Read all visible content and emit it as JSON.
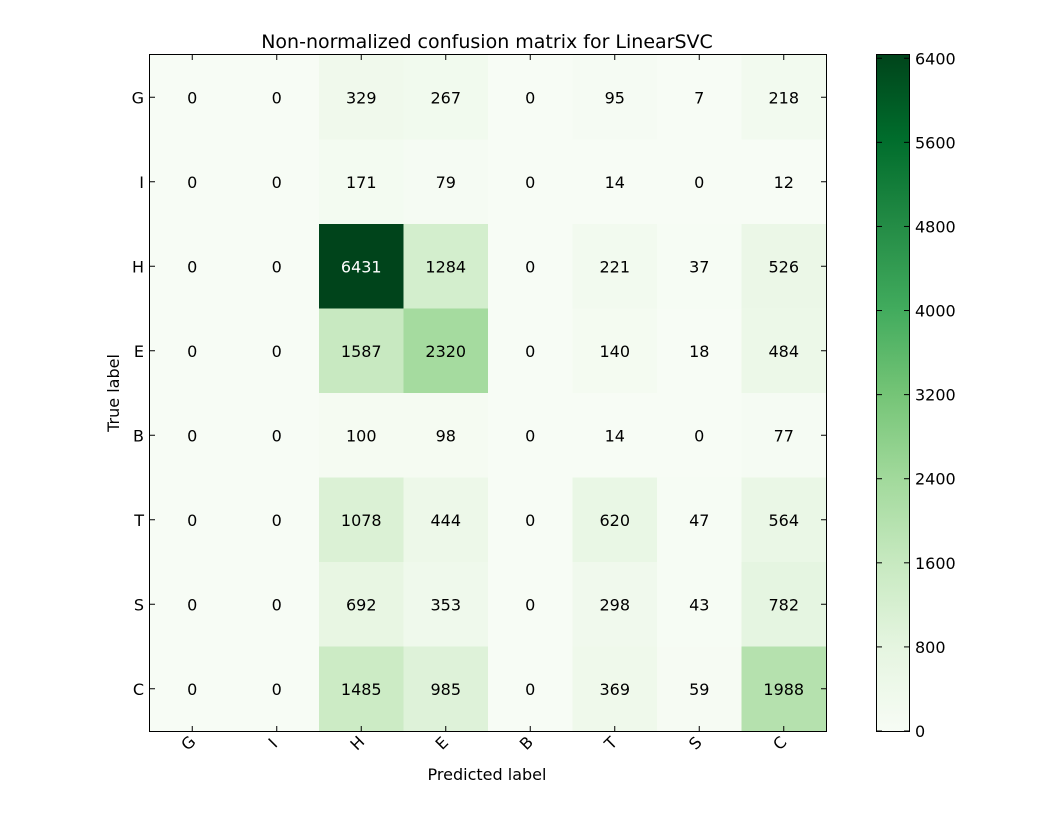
{
  "chart_data": {
    "type": "heatmap",
    "title": "Non-normalized confusion matrix for LinearSVC",
    "xlabel": "Predicted label",
    "ylabel": "True label",
    "x_labels": [
      "G",
      "I",
      "H",
      "E",
      "B",
      "T",
      "S",
      "C"
    ],
    "y_labels": [
      "G",
      "I",
      "H",
      "E",
      "B",
      "T",
      "S",
      "C"
    ],
    "values": [
      [
        0,
        0,
        329,
        267,
        0,
        95,
        7,
        218
      ],
      [
        0,
        0,
        171,
        79,
        0,
        14,
        0,
        12
      ],
      [
        0,
        0,
        6431,
        1284,
        0,
        221,
        37,
        526
      ],
      [
        0,
        0,
        1587,
        2320,
        0,
        140,
        18,
        484
      ],
      [
        0,
        0,
        100,
        98,
        0,
        14,
        0,
        77
      ],
      [
        0,
        0,
        1078,
        444,
        0,
        620,
        47,
        564
      ],
      [
        0,
        0,
        692,
        353,
        0,
        298,
        43,
        782
      ],
      [
        0,
        0,
        1485,
        985,
        0,
        369,
        59,
        1988
      ]
    ],
    "colorbar": {
      "min": 0,
      "max": 6431,
      "ticks": [
        0,
        800,
        1600,
        2400,
        3200,
        4000,
        4800,
        5600,
        6400
      ],
      "colormap": "Greens",
      "color_low": "#f7fcf5",
      "color_high": "#00441b"
    },
    "text_color_threshold": 3215
  }
}
